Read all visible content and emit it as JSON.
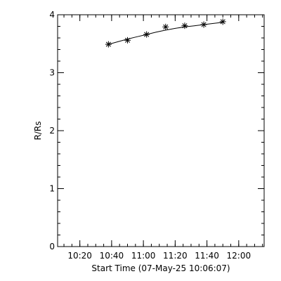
{
  "chart_data": {
    "type": "scatter",
    "title": "",
    "xlabel": "Start Time (07-May-25 10:06:07)",
    "ylabel": "R/Rs",
    "x_type": "time",
    "xlim": [
      "10:06",
      "12:16"
    ],
    "ylim": [
      0,
      4
    ],
    "x_major_ticks": [
      "10:20",
      "10:40",
      "11:00",
      "11:20",
      "11:40",
      "12:00"
    ],
    "y_major_ticks": [
      0,
      1,
      2,
      3,
      4
    ],
    "x_minor_tick_step_minutes": 5,
    "y_minor_tick_step": 0.2,
    "grid": false,
    "legend": "none",
    "marker": "asterisk",
    "series": [
      {
        "x": [
          "10:38",
          "10:50",
          "11:02",
          "11:14",
          "11:26",
          "11:38",
          "11:50"
        ],
        "y": [
          3.49,
          3.56,
          3.66,
          3.79,
          3.81,
          3.83,
          3.88
        ]
      }
    ],
    "fit": {
      "x": [
        "10:38",
        "10:44",
        "10:50",
        "10:56",
        "11:02",
        "11:08",
        "11:14",
        "11:20",
        "11:26",
        "11:32",
        "11:38",
        "11:44",
        "11:50"
      ],
      "y": [
        3.49,
        3.535,
        3.58,
        3.62,
        3.66,
        3.7,
        3.735,
        3.765,
        3.79,
        3.81,
        3.83,
        3.85,
        3.87
      ]
    },
    "colors": {
      "foreground": "#000000",
      "background": "#ffffff"
    }
  }
}
